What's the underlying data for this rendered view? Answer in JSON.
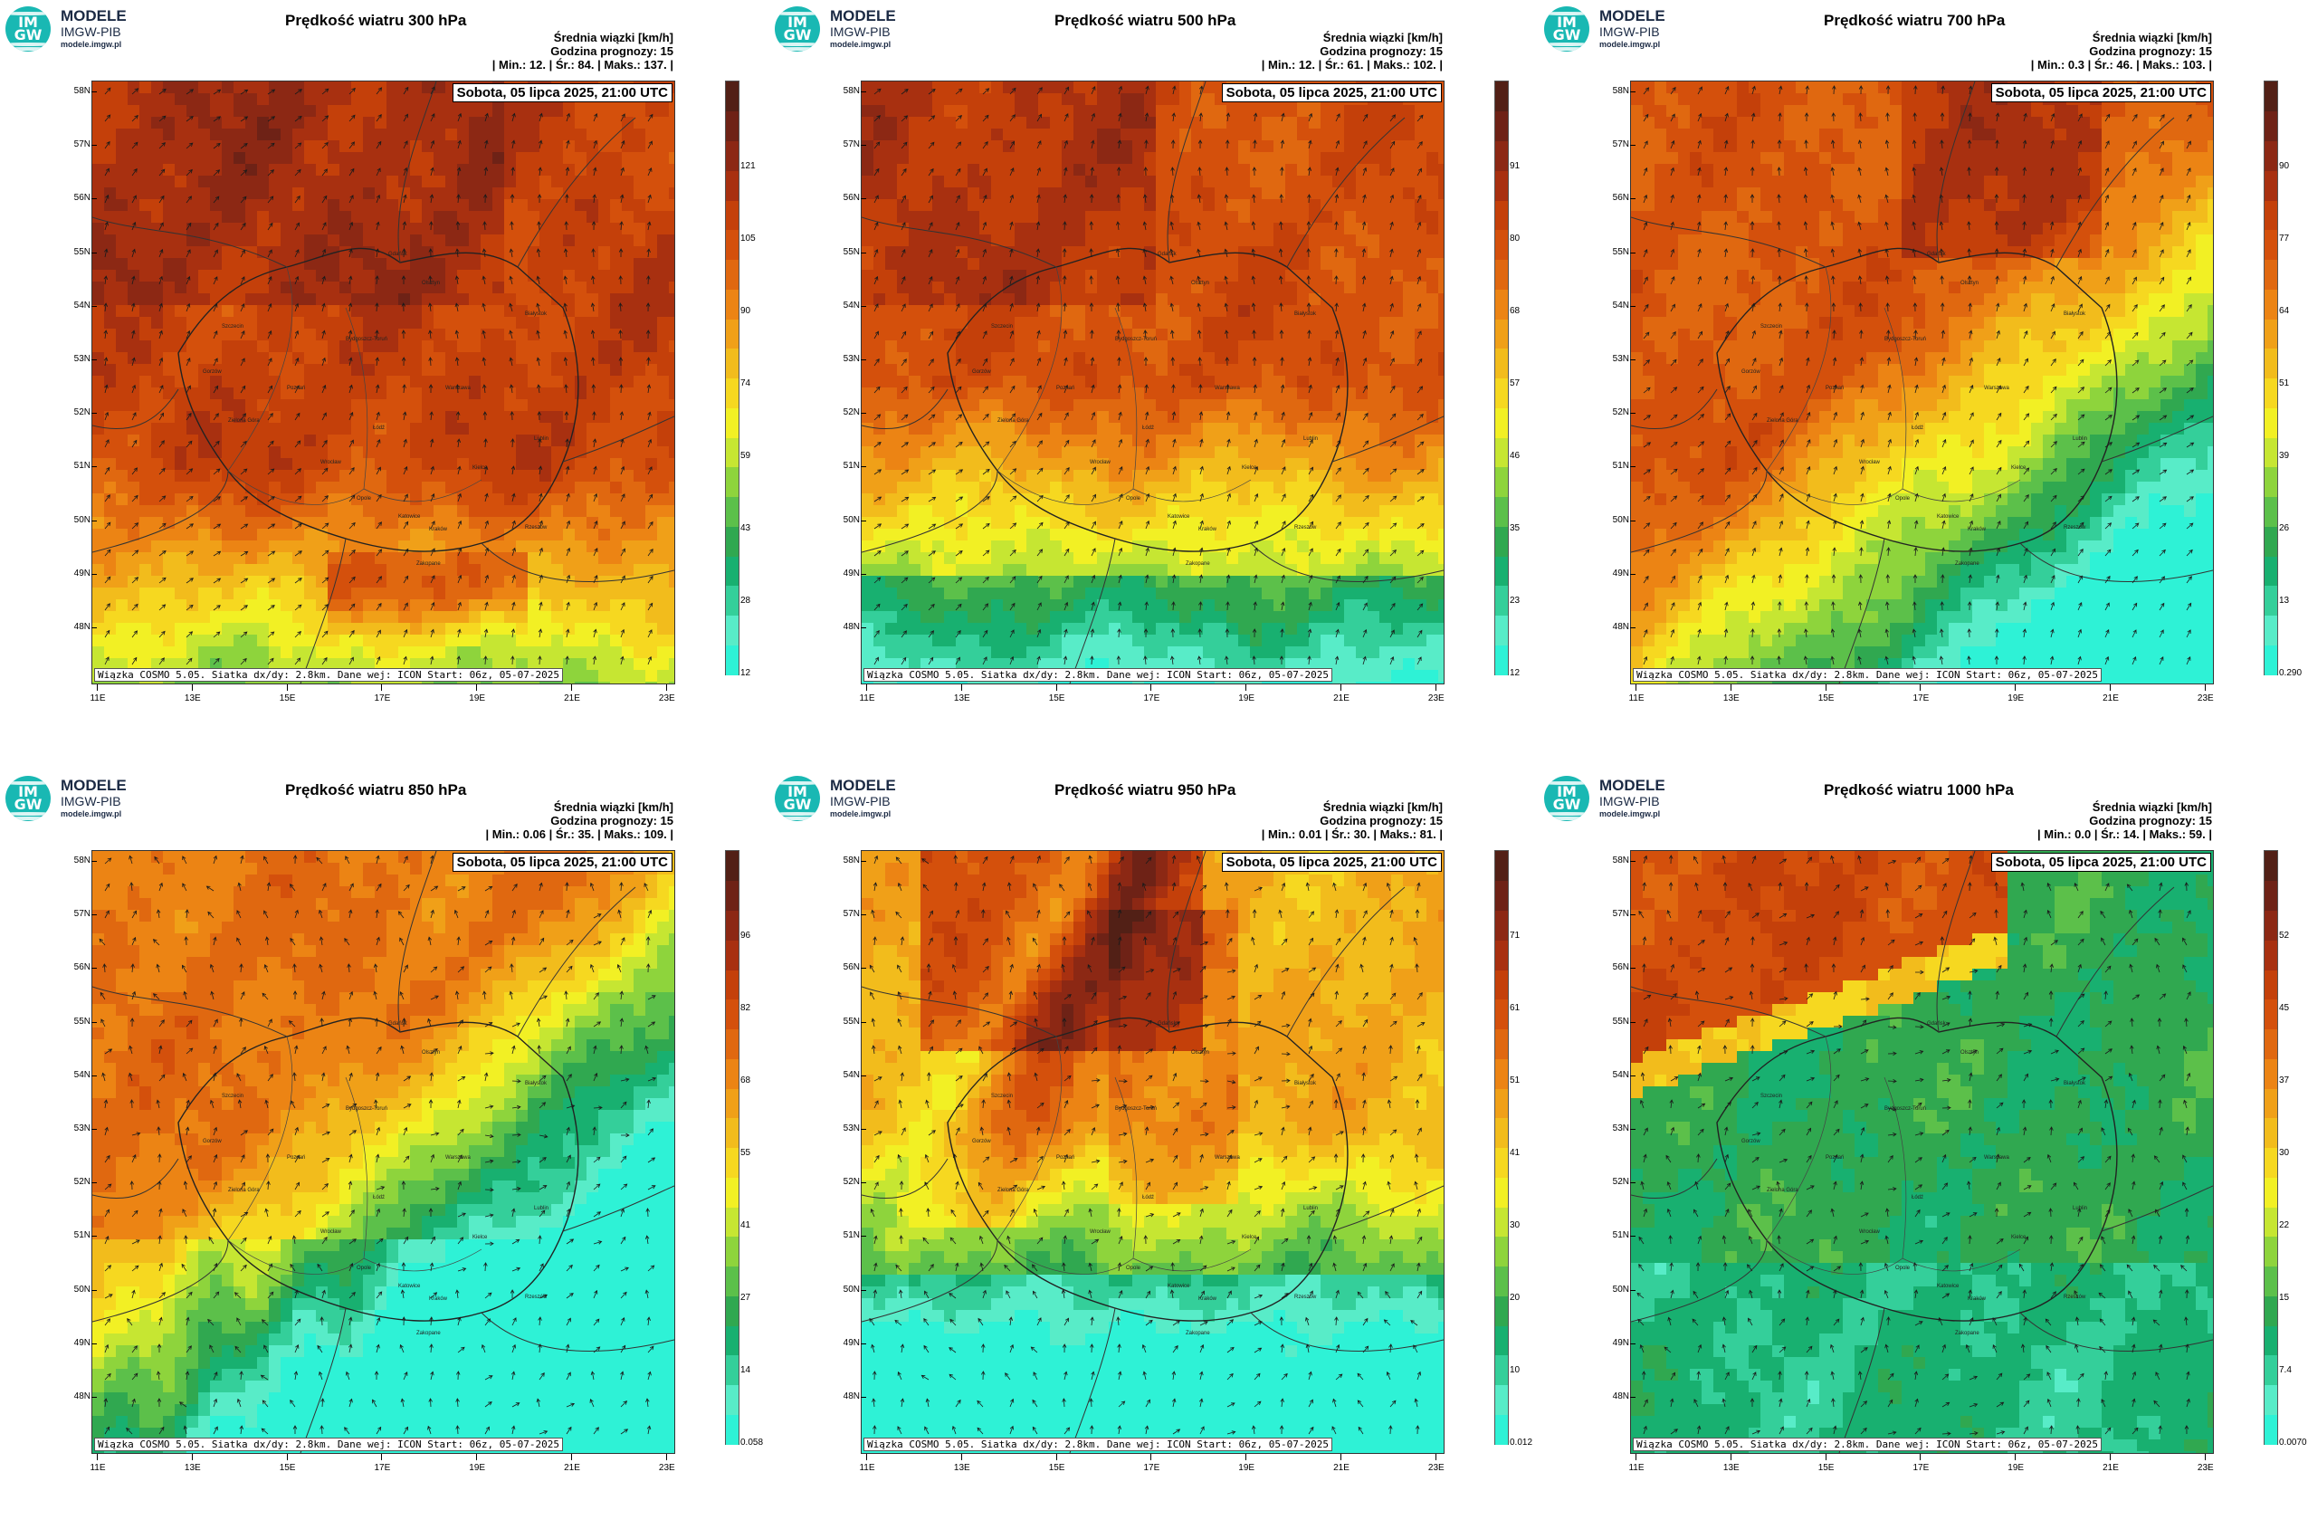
{
  "logo": {
    "badge": "IM GW",
    "title": "MODELE",
    "subtitle": "IMGW-PIB",
    "url": "modele.imgw.pl"
  },
  "common": {
    "units_line": "Średnia wiązki [km/h]",
    "forecast_hour": "Godzina prognozy: 15",
    "date": "Sobota, 05 lipca 2025, 21:00 UTC",
    "footer": "Wiązka COSMO 5.05. Siatka dx/dy: 2.8km. Dane wej: ICON Start: 06z, 05-07-2025",
    "lat_labels": [
      "58N",
      "57N",
      "56N",
      "55N",
      "54N",
      "53N",
      "52N",
      "51N",
      "50N",
      "49N",
      "48N"
    ],
    "lon_labels": [
      "11E",
      "13E",
      "15E",
      "17E",
      "19E",
      "21E",
      "23E"
    ],
    "cities": [
      "Gdańsk",
      "Olsztyn",
      "Szczecin",
      "Bydgoszcz-Toruń",
      "Białystok",
      "Gorzów",
      "Poznań",
      "Warszawa",
      "Zielona Góra",
      "Łódź",
      "Lublin",
      "Wrocław",
      "Kielce",
      "Opole",
      "Katowice",
      "Rzeszów",
      "Kraków",
      "Zakopane"
    ]
  },
  "palette": [
    "#2ef2d6",
    "#58ecc8",
    "#34cf9a",
    "#18b070",
    "#30a850",
    "#5cc04a",
    "#8ed43c",
    "#c6e632",
    "#f2f024",
    "#f6d820",
    "#f2bc1c",
    "#f0a018",
    "#ec8414",
    "#e06810",
    "#d4500c",
    "#c4400a",
    "#a83010",
    "#8c2814",
    "#6e2216",
    "#522016"
  ],
  "panels": [
    {
      "title": "Prędkość wiatru 300 hPa",
      "stats": "| Min.:  12. | Śr.:  84. | Maks.:  137. |",
      "cbar_labels": [
        "12",
        "28",
        "43",
        "59",
        "74",
        "90",
        "105",
        "121"
      ]
    },
    {
      "title": "Prędkość wiatru 500 hPa",
      "stats": "| Min.:  12. | Śr.:  61. | Maks.:  102. |",
      "cbar_labels": [
        "12",
        "23",
        "35",
        "46",
        "57",
        "68",
        "80",
        "91"
      ]
    },
    {
      "title": "Prędkość wiatru 700 hPa",
      "stats": "| Min.:  0.3 | Śr.:  46. | Maks.:  103. |",
      "cbar_labels": [
        "0.290",
        "13",
        "26",
        "39",
        "51",
        "64",
        "77",
        "90"
      ]
    },
    {
      "title": "Prędkość wiatru 850 hPa",
      "stats": "| Min.:  0.06 | Śr.:  35. | Maks.:  109. |",
      "cbar_labels": [
        "0.058",
        "14",
        "27",
        "41",
        "55",
        "68",
        "82",
        "96"
      ]
    },
    {
      "title": "Prędkość wiatru 950 hPa",
      "stats": "| Min.:  0.01 | Śr.:  30. | Maks.:  81. |",
      "cbar_labels": [
        "0.012",
        "10",
        "20",
        "30",
        "41",
        "51",
        "61",
        "71"
      ]
    },
    {
      "title": "Prędkość wiatru 1000 hPa",
      "stats": "| Min.:  0.0 | Śr.:  14. | Maks.:  59. |",
      "cbar_labels": [
        "0.0070",
        "7.4",
        "15",
        "22",
        "30",
        "37",
        "45",
        "52"
      ]
    }
  ]
}
